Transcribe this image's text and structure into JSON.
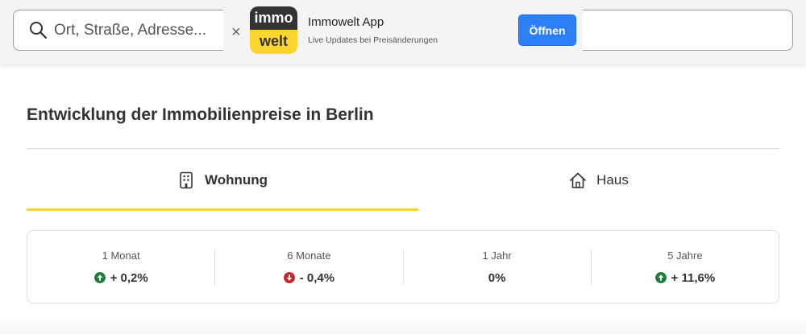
{
  "search": {
    "placeholder": "Ort, Straße, Adresse..."
  },
  "app_banner": {
    "close_symbol": "×",
    "logo_top": "immo",
    "logo_bottom": "welt",
    "title": "Immowelt App",
    "subtitle": "Live Updates bei Preisänderungen",
    "open_label": "Öffnen"
  },
  "section": {
    "title": "Entwicklung der Immobilienpreise in Berlin"
  },
  "tabs": [
    {
      "label": "Wohnung",
      "icon": "building-icon",
      "active": true
    },
    {
      "label": "Haus",
      "icon": "house-icon",
      "active": false
    }
  ],
  "stats": [
    {
      "period": "1 Monat",
      "value": "+ 0,2%",
      "trend": "up"
    },
    {
      "period": "6 Monate",
      "value": "- 0,4%",
      "trend": "down"
    },
    {
      "period": "1 Jahr",
      "value": "0%",
      "trend": "none"
    },
    {
      "period": "5 Jahre",
      "value": "+ 11,6%",
      "trend": "up"
    }
  ],
  "colors": {
    "accent_yellow": "#fed42f",
    "button_blue": "#2d7ff9",
    "trend_up": "#1e7b3a",
    "trend_down": "#c4262e",
    "logo_dark": "#333333"
  }
}
